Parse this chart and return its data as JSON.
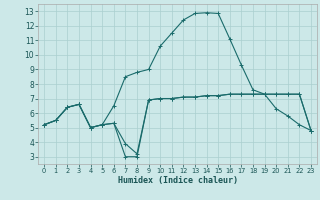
{
  "title": "",
  "xlabel": "Humidex (Indice chaleur)",
  "ylabel": "",
  "bg_color": "#cce8e8",
  "grid_color": "#aacfcf",
  "line_color": "#1a6b6b",
  "x_ticks": [
    0,
    1,
    2,
    3,
    4,
    5,
    6,
    7,
    8,
    9,
    10,
    11,
    12,
    13,
    14,
    15,
    16,
    17,
    18,
    19,
    20,
    21,
    22,
    23
  ],
  "y_ticks": [
    3,
    4,
    5,
    6,
    7,
    8,
    9,
    10,
    11,
    12,
    13
  ],
  "xlim": [
    -0.5,
    23.5
  ],
  "ylim": [
    2.5,
    13.5
  ],
  "series": [
    {
      "x": [
        0,
        1,
        2,
        3,
        4,
        5,
        6,
        7,
        8,
        9,
        10,
        11,
        12,
        13,
        14,
        15,
        16,
        17,
        18,
        19,
        20,
        21,
        22,
        23
      ],
      "y": [
        5.2,
        5.5,
        6.4,
        6.6,
        5.0,
        5.2,
        5.3,
        3.0,
        3.0,
        6.9,
        7.0,
        7.0,
        7.1,
        7.1,
        7.2,
        7.2,
        7.3,
        7.3,
        7.3,
        7.3,
        7.3,
        7.3,
        7.3,
        4.8
      ]
    },
    {
      "x": [
        0,
        1,
        2,
        3,
        4,
        5,
        6,
        7,
        8,
        9,
        10,
        11,
        12,
        13,
        14,
        15,
        16,
        17,
        18,
        19,
        20,
        21,
        22,
        23
      ],
      "y": [
        5.2,
        5.5,
        6.4,
        6.6,
        5.0,
        5.2,
        6.5,
        8.5,
        8.8,
        9.0,
        10.6,
        11.5,
        12.4,
        12.85,
        12.9,
        12.85,
        11.1,
        9.3,
        7.6,
        7.3,
        6.3,
        5.8,
        5.2,
        4.8
      ]
    },
    {
      "x": [
        0,
        1,
        2,
        3,
        4,
        5,
        6,
        7,
        8,
        9,
        10,
        11,
        12,
        13,
        14,
        15,
        16,
        17,
        18,
        19,
        20,
        21,
        22,
        23
      ],
      "y": [
        5.2,
        5.5,
        6.4,
        6.6,
        5.0,
        5.2,
        5.3,
        3.9,
        3.2,
        6.9,
        7.0,
        7.0,
        7.1,
        7.1,
        7.2,
        7.2,
        7.3,
        7.3,
        7.3,
        7.3,
        7.3,
        7.3,
        7.3,
        4.8
      ]
    }
  ]
}
